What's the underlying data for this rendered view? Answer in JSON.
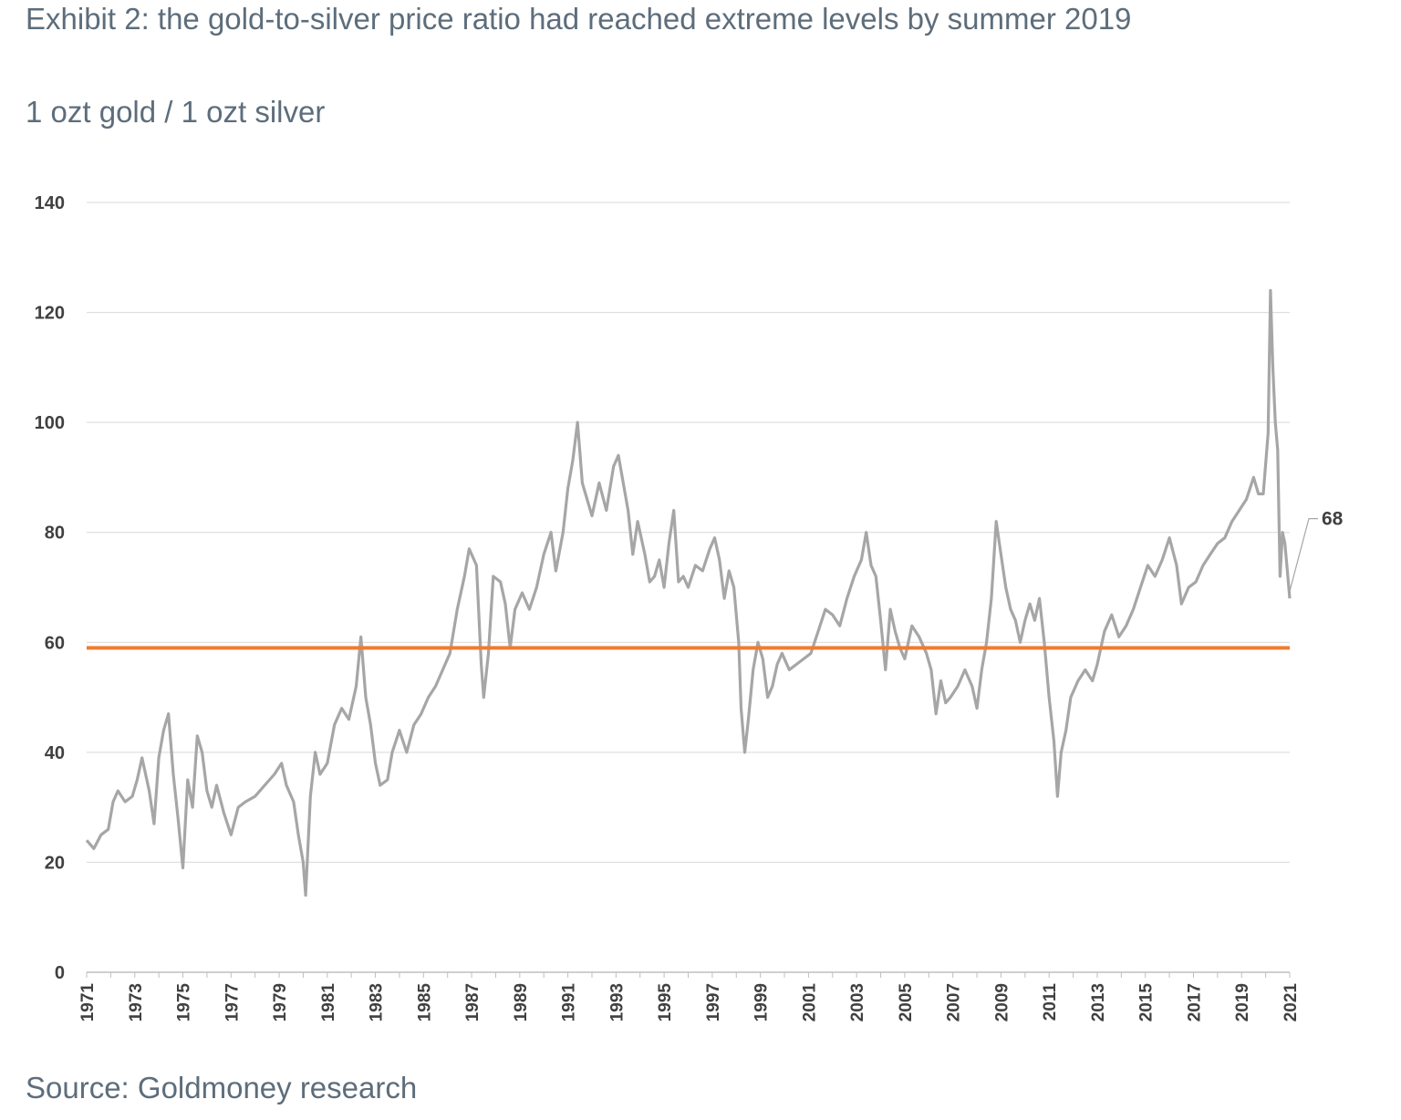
{
  "title": "Exhibit 2: the gold-to-silver price ratio had reached extreme levels by summer 2019",
  "subtitle": "1 ozt gold / 1 ozt silver",
  "source": "Source: Goldmoney research",
  "chart_data": {
    "type": "line",
    "ylim": [
      0,
      140
    ],
    "yticks": [
      "0",
      "20",
      "40",
      "60",
      "80",
      "100",
      "120",
      "140"
    ],
    "xlim": [
      1971,
      2021
    ],
    "xticks": [
      "1971",
      "1973",
      "1975",
      "1977",
      "1979",
      "1981",
      "1983",
      "1985",
      "1987",
      "1989",
      "1991",
      "1993",
      "1995",
      "1997",
      "1999",
      "2001",
      "2003",
      "2005",
      "2007",
      "2009",
      "2011",
      "2013",
      "2015",
      "2017",
      "2019",
      "2021"
    ],
    "grid": "horizontal",
    "end_label": "68",
    "colors": {
      "series": "#a6a6a6",
      "reference": "#ed7d31",
      "grid": "#d9d9d9"
    },
    "reference_line": {
      "value": 59
    },
    "series": [
      {
        "values": [
          [
            1971.0,
            24
          ],
          [
            1971.3,
            22.5
          ],
          [
            1971.6,
            25
          ],
          [
            1971.9,
            26
          ],
          [
            1972.1,
            31
          ],
          [
            1972.3,
            33
          ],
          [
            1972.6,
            31
          ],
          [
            1972.9,
            32
          ],
          [
            1973.1,
            35
          ],
          [
            1973.3,
            39
          ],
          [
            1973.6,
            33
          ],
          [
            1973.8,
            27
          ],
          [
            1974.0,
            39
          ],
          [
            1974.2,
            44
          ],
          [
            1974.4,
            47
          ],
          [
            1974.6,
            36
          ],
          [
            1974.8,
            28
          ],
          [
            1975.0,
            19
          ],
          [
            1975.2,
            35
          ],
          [
            1975.4,
            30
          ],
          [
            1975.6,
            43
          ],
          [
            1975.8,
            40
          ],
          [
            1976.0,
            33
          ],
          [
            1976.2,
            30
          ],
          [
            1976.4,
            34
          ],
          [
            1976.7,
            29
          ],
          [
            1977.0,
            25
          ],
          [
            1977.3,
            30
          ],
          [
            1977.6,
            31
          ],
          [
            1978.0,
            32
          ],
          [
            1978.4,
            34
          ],
          [
            1978.8,
            36
          ],
          [
            1979.1,
            38
          ],
          [
            1979.3,
            34
          ],
          [
            1979.6,
            31
          ],
          [
            1979.8,
            25
          ],
          [
            1980.0,
            20
          ],
          [
            1980.1,
            14
          ],
          [
            1980.3,
            32
          ],
          [
            1980.5,
            40
          ],
          [
            1980.7,
            36
          ],
          [
            1981.0,
            38
          ],
          [
            1981.3,
            45
          ],
          [
            1981.6,
            48
          ],
          [
            1981.9,
            46
          ],
          [
            1982.2,
            52
          ],
          [
            1982.4,
            61
          ],
          [
            1982.6,
            50
          ],
          [
            1982.8,
            45
          ],
          [
            1983.0,
            38
          ],
          [
            1983.2,
            34
          ],
          [
            1983.5,
            35
          ],
          [
            1983.7,
            40
          ],
          [
            1984.0,
            44
          ],
          [
            1984.3,
            40
          ],
          [
            1984.6,
            45
          ],
          [
            1984.9,
            47
          ],
          [
            1985.2,
            50
          ],
          [
            1985.5,
            52
          ],
          [
            1985.8,
            55
          ],
          [
            1986.1,
            58
          ],
          [
            1986.4,
            66
          ],
          [
            1986.7,
            72
          ],
          [
            1986.9,
            77
          ],
          [
            1987.2,
            74
          ],
          [
            1987.4,
            56
          ],
          [
            1987.5,
            50
          ],
          [
            1987.7,
            58
          ],
          [
            1987.9,
            72
          ],
          [
            1988.2,
            71
          ],
          [
            1988.4,
            67
          ],
          [
            1988.6,
            59
          ],
          [
            1988.8,
            66
          ],
          [
            1989.1,
            69
          ],
          [
            1989.4,
            66
          ],
          [
            1989.7,
            70
          ],
          [
            1990.0,
            76
          ],
          [
            1990.3,
            80
          ],
          [
            1990.5,
            73
          ],
          [
            1990.8,
            80
          ],
          [
            1991.0,
            88
          ],
          [
            1991.2,
            93
          ],
          [
            1991.4,
            100
          ],
          [
            1991.6,
            89
          ],
          [
            1991.8,
            86
          ],
          [
            1992.0,
            83
          ],
          [
            1992.3,
            89
          ],
          [
            1992.6,
            84
          ],
          [
            1992.9,
            92
          ],
          [
            1993.1,
            94
          ],
          [
            1993.3,
            89
          ],
          [
            1993.5,
            84
          ],
          [
            1993.7,
            76
          ],
          [
            1993.9,
            82
          ],
          [
            1994.2,
            76
          ],
          [
            1994.4,
            71
          ],
          [
            1994.6,
            72
          ],
          [
            1994.8,
            75
          ],
          [
            1995.0,
            70
          ],
          [
            1995.2,
            78
          ],
          [
            1995.4,
            84
          ],
          [
            1995.6,
            71
          ],
          [
            1995.8,
            72
          ],
          [
            1996.0,
            70
          ],
          [
            1996.3,
            74
          ],
          [
            1996.6,
            73
          ],
          [
            1996.9,
            77
          ],
          [
            1997.1,
            79
          ],
          [
            1997.3,
            75
          ],
          [
            1997.5,
            68
          ],
          [
            1997.7,
            73
          ],
          [
            1997.9,
            70
          ],
          [
            1998.1,
            60
          ],
          [
            1998.2,
            48
          ],
          [
            1998.35,
            40
          ],
          [
            1998.5,
            46
          ],
          [
            1998.7,
            55
          ],
          [
            1998.9,
            60
          ],
          [
            1999.1,
            57
          ],
          [
            1999.3,
            50
          ],
          [
            1999.5,
            52
          ],
          [
            1999.7,
            56
          ],
          [
            1999.9,
            58
          ],
          [
            2000.2,
            55
          ],
          [
            2000.5,
            56
          ],
          [
            2000.8,
            57
          ],
          [
            2001.1,
            58
          ],
          [
            2001.4,
            62
          ],
          [
            2001.7,
            66
          ],
          [
            2002.0,
            65
          ],
          [
            2002.3,
            63
          ],
          [
            2002.6,
            68
          ],
          [
            2002.9,
            72
          ],
          [
            2003.2,
            75
          ],
          [
            2003.4,
            80
          ],
          [
            2003.6,
            74
          ],
          [
            2003.8,
            72
          ],
          [
            2004.0,
            64
          ],
          [
            2004.2,
            55
          ],
          [
            2004.4,
            66
          ],
          [
            2004.6,
            62
          ],
          [
            2004.8,
            59
          ],
          [
            2005.0,
            57
          ],
          [
            2005.3,
            63
          ],
          [
            2005.6,
            61
          ],
          [
            2005.9,
            58
          ],
          [
            2006.1,
            55
          ],
          [
            2006.3,
            47
          ],
          [
            2006.5,
            53
          ],
          [
            2006.7,
            49
          ],
          [
            2006.9,
            50
          ],
          [
            2007.2,
            52
          ],
          [
            2007.5,
            55
          ],
          [
            2007.8,
            52
          ],
          [
            2008.0,
            48
          ],
          [
            2008.2,
            55
          ],
          [
            2008.4,
            60
          ],
          [
            2008.6,
            68
          ],
          [
            2008.8,
            82
          ],
          [
            2009.0,
            76
          ],
          [
            2009.2,
            70
          ],
          [
            2009.4,
            66
          ],
          [
            2009.6,
            64
          ],
          [
            2009.8,
            60
          ],
          [
            2010.0,
            64
          ],
          [
            2010.2,
            67
          ],
          [
            2010.4,
            64
          ],
          [
            2010.6,
            68
          ],
          [
            2010.8,
            60
          ],
          [
            2011.0,
            50
          ],
          [
            2011.2,
            42
          ],
          [
            2011.35,
            32
          ],
          [
            2011.5,
            40
          ],
          [
            2011.7,
            44
          ],
          [
            2011.9,
            50
          ],
          [
            2012.2,
            53
          ],
          [
            2012.5,
            55
          ],
          [
            2012.8,
            53
          ],
          [
            2013.0,
            56
          ],
          [
            2013.3,
            62
          ],
          [
            2013.6,
            65
          ],
          [
            2013.9,
            61
          ],
          [
            2014.2,
            63
          ],
          [
            2014.5,
            66
          ],
          [
            2014.8,
            70
          ],
          [
            2015.1,
            74
          ],
          [
            2015.4,
            72
          ],
          [
            2015.7,
            75
          ],
          [
            2016.0,
            79
          ],
          [
            2016.3,
            74
          ],
          [
            2016.5,
            67
          ],
          [
            2016.8,
            70
          ],
          [
            2017.1,
            71
          ],
          [
            2017.4,
            74
          ],
          [
            2017.7,
            76
          ],
          [
            2018.0,
            78
          ],
          [
            2018.3,
            79
          ],
          [
            2018.6,
            82
          ],
          [
            2018.9,
            84
          ],
          [
            2019.2,
            86
          ],
          [
            2019.5,
            90
          ],
          [
            2019.7,
            87
          ],
          [
            2019.9,
            87
          ],
          [
            2020.1,
            98
          ],
          [
            2020.2,
            124
          ],
          [
            2020.3,
            110
          ],
          [
            2020.4,
            100
          ],
          [
            2020.5,
            95
          ],
          [
            2020.6,
            72
          ],
          [
            2020.7,
            80
          ],
          [
            2020.8,
            78
          ],
          [
            2020.9,
            73
          ],
          [
            2021.0,
            68
          ]
        ]
      }
    ]
  }
}
